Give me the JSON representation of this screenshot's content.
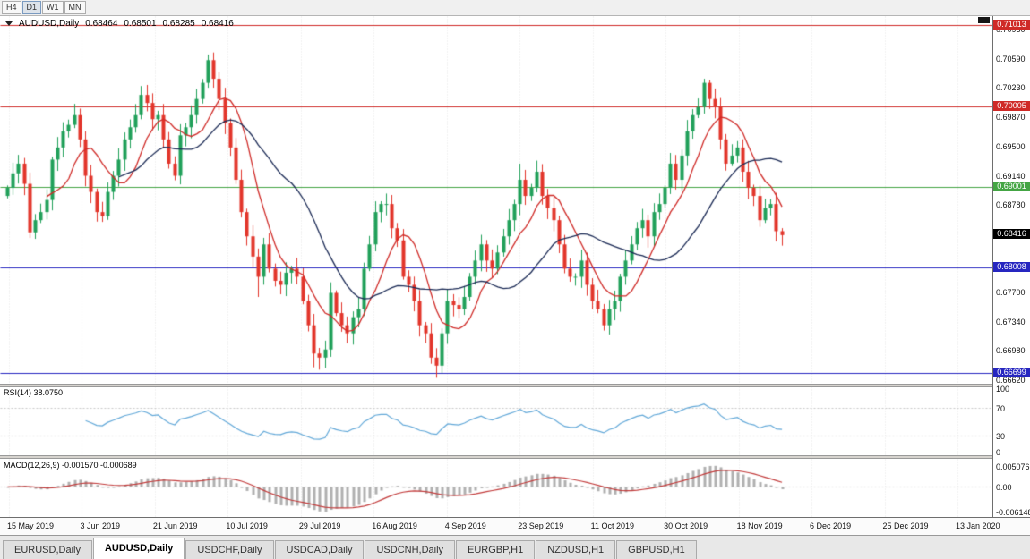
{
  "toolbar": {
    "buttons": [
      {
        "label": "H4",
        "active": false
      },
      {
        "label": "D1",
        "active": true
      },
      {
        "label": "W1",
        "active": false
      },
      {
        "label": "MN",
        "active": false
      }
    ]
  },
  "chart": {
    "title": {
      "symbol": "AUDUSD,Daily",
      "open": "0.68464",
      "high": "0.68501",
      "low": "0.68285",
      "close": "0.68416"
    },
    "price_ticks": [
      "0.70950",
      "0.70590",
      "0.70230",
      "0.69870",
      "0.69500",
      "0.69140",
      "0.68780",
      "0.67700",
      "0.67340",
      "0.66980",
      "0.66620"
    ],
    "levels": [
      {
        "price": 0.71013,
        "label": "0.71013",
        "color": "#cf2a27"
      },
      {
        "price": 0.70005,
        "label": "0.70005",
        "color": "#cf2a27"
      },
      {
        "price": 0.69001,
        "label": "0.69001",
        "color": "#44a544"
      },
      {
        "price": 0.68008,
        "label": "0.68008",
        "color": "#2626c0"
      },
      {
        "price": 0.66699,
        "label": "0.66699",
        "color": "#2626c0"
      }
    ],
    "current_tag": {
      "price": 0.68416,
      "label": "0.68416",
      "color": "#000000"
    },
    "time_labels": [
      "15 May 2019",
      "3 Jun 2019",
      "21 Jun 2019",
      "10 Jul 2019",
      "29 Jul 2019",
      "16 Aug 2019",
      "4 Sep 2019",
      "23 Sep 2019",
      "11 Oct 2019",
      "30 Oct 2019",
      "18 Nov 2019",
      "6 Dec 2019",
      "25 Dec 2019",
      "13 Jan 2020"
    ],
    "rsi": {
      "label": "RSI(14) 38.0750",
      "axis": [
        {
          "label": "100",
          "v": 100
        },
        {
          "label": "70",
          "v": 70
        },
        {
          "label": "30",
          "v": 30
        },
        {
          "label": "0",
          "v": 0
        }
      ]
    },
    "macd": {
      "label": "MACD(12,26,9) -0.001570 -0.000689",
      "axis": [
        {
          "label": "0.005076",
          "v": 0.005076
        },
        {
          "label": "0.00",
          "v": 0
        },
        {
          "label": "-0.006148",
          "v": -0.006148
        }
      ]
    },
    "colors": {
      "bull": "#21a05a",
      "bear": "#e2352b",
      "ma_fast": "#cf2a27",
      "ma_slow": "#1b2a55",
      "rsi_line": "#62a8d8",
      "macd_hist": "#b0b0b0",
      "macd_signal": "#c23b3b",
      "grid": "#e0e0e0",
      "dash": "#c8c8c8"
    }
  },
  "chart_data": {
    "type": "candlestick",
    "symbol": "AUDUSD",
    "timeframe": "Daily",
    "y_range": [
      0.6656,
      0.7112
    ],
    "indicator_scales": {
      "rsi": [
        0,
        100
      ],
      "macd": [
        -0.0075,
        0.0068
      ]
    },
    "closes": [
      0.69,
      0.6918,
      0.693,
      0.6905,
      0.6845,
      0.686,
      0.687,
      0.6885,
      0.6935,
      0.695,
      0.697,
      0.6978,
      0.699,
      0.696,
      0.6915,
      0.6895,
      0.687,
      0.6865,
      0.6895,
      0.6915,
      0.6935,
      0.696,
      0.6975,
      0.699,
      0.7015,
      0.7005,
      0.6985,
      0.699,
      0.696,
      0.693,
      0.6915,
      0.6965,
      0.6975,
      0.699,
      0.701,
      0.703,
      0.7058,
      0.7035,
      0.701,
      0.698,
      0.695,
      0.691,
      0.687,
      0.684,
      0.6815,
      0.679,
      0.683,
      0.68,
      0.6785,
      0.678,
      0.6795,
      0.68,
      0.679,
      0.676,
      0.673,
      0.6695,
      0.669,
      0.67,
      0.677,
      0.6745,
      0.673,
      0.672,
      0.674,
      0.675,
      0.68,
      0.683,
      0.687,
      0.688,
      0.688,
      0.685,
      0.6835,
      0.679,
      0.678,
      0.676,
      0.673,
      0.672,
      0.669,
      0.668,
      0.672,
      0.676,
      0.6755,
      0.675,
      0.6765,
      0.679,
      0.681,
      0.683,
      0.681,
      0.68,
      0.682,
      0.684,
      0.686,
      0.688,
      0.691,
      0.689,
      0.69,
      0.692,
      0.689,
      0.6875,
      0.686,
      0.683,
      0.68,
      0.679,
      0.679,
      0.681,
      0.678,
      0.676,
      0.675,
      0.673,
      0.675,
      0.676,
      0.679,
      0.681,
      0.683,
      0.685,
      0.686,
      0.684,
      0.687,
      0.688,
      0.69,
      0.693,
      0.691,
      0.694,
      0.697,
      0.699,
      0.7,
      0.703,
      0.701,
      0.7,
      0.696,
      0.693,
      0.694,
      0.695,
      0.692,
      0.69,
      0.689,
      0.686,
      0.6875,
      0.688,
      0.68464,
      0.68416
    ],
    "wick_overrides": {
      "4": {
        "l": 0.6838
      },
      "24": {
        "h": 0.7026
      },
      "36": {
        "h": 0.7065
      },
      "45": {
        "l": 0.6765
      },
      "55": {
        "l": 0.6678
      },
      "56": {
        "l": 0.6675
      },
      "77": {
        "l": 0.6665
      },
      "92": {
        "h": 0.693
      },
      "125": {
        "h": 0.7035
      },
      "139": {
        "o": 0.68464,
        "h": 0.68501,
        "l": 0.68285,
        "c": 0.68416
      }
    }
  },
  "tabs": {
    "active_index": 1,
    "items": [
      {
        "label": "EURUSD,Daily"
      },
      {
        "label": "AUDUSD,Daily"
      },
      {
        "label": "USDCHF,Daily"
      },
      {
        "label": "USDCAD,Daily"
      },
      {
        "label": "USDCNH,Daily"
      },
      {
        "label": "EURGBP,H1"
      },
      {
        "label": "NZDUSD,H1"
      },
      {
        "label": "GBPUSD,H1"
      }
    ]
  }
}
